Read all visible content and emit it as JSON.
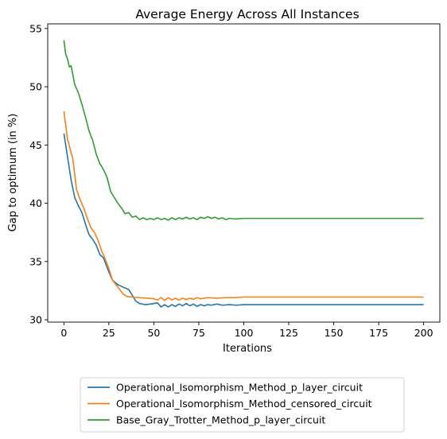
{
  "chart_data": {
    "type": "line",
    "title": "Average Energy Across All Instances",
    "xlabel": "Iterations",
    "ylabel": "Gap to optimum (in %)",
    "xlim": [
      -9,
      209
    ],
    "ylim": [
      29.8,
      55.4
    ],
    "xticks": [
      0,
      25,
      50,
      75,
      100,
      125,
      150,
      175,
      200
    ],
    "yticks": [
      30,
      35,
      40,
      45,
      50,
      55
    ],
    "grid": false,
    "legend_position": "bottom-center-outside",
    "series": [
      {
        "name": "Operational_Isomorphism_Method_p_layer_circuit",
        "color": "#1f77b4",
        "points": [
          [
            0,
            46.0
          ],
          [
            2,
            44.0
          ],
          [
            4,
            42.0
          ],
          [
            6,
            40.5
          ],
          [
            8,
            39.8
          ],
          [
            10,
            39.2
          ],
          [
            12,
            38.2
          ],
          [
            14,
            37.3
          ],
          [
            16,
            36.9
          ],
          [
            18,
            36.4
          ],
          [
            20,
            35.6
          ],
          [
            22,
            35.3
          ],
          [
            25,
            34.1
          ],
          [
            27,
            33.4
          ],
          [
            30,
            33.0
          ],
          [
            33,
            32.8
          ],
          [
            36,
            32.6
          ],
          [
            38,
            32.1
          ],
          [
            40,
            31.6
          ],
          [
            42,
            31.4
          ],
          [
            45,
            31.3
          ],
          [
            48,
            31.35
          ],
          [
            52,
            31.45
          ],
          [
            54,
            31.1
          ],
          [
            56,
            31.3
          ],
          [
            58,
            31.1
          ],
          [
            60,
            31.3
          ],
          [
            62,
            31.15
          ],
          [
            64,
            31.35
          ],
          [
            66,
            31.2
          ],
          [
            68,
            31.4
          ],
          [
            70,
            31.2
          ],
          [
            72,
            31.35
          ],
          [
            74,
            31.15
          ],
          [
            76,
            31.3
          ],
          [
            78,
            31.2
          ],
          [
            80,
            31.3
          ],
          [
            82,
            31.25
          ],
          [
            85,
            31.35
          ],
          [
            88,
            31.25
          ],
          [
            92,
            31.3
          ],
          [
            96,
            31.25
          ],
          [
            100,
            31.3
          ],
          [
            125,
            31.3
          ],
          [
            150,
            31.3
          ],
          [
            175,
            31.3
          ],
          [
            200,
            31.3
          ]
        ]
      },
      {
        "name": "Operational_Isomorphism_Method_censored_circuit",
        "color": "#ff7f0e",
        "points": [
          [
            0,
            47.9
          ],
          [
            2,
            45.5
          ],
          [
            5,
            43.8
          ],
          [
            7,
            41.2
          ],
          [
            9,
            40.3
          ],
          [
            11,
            39.6
          ],
          [
            13,
            38.7
          ],
          [
            15,
            37.9
          ],
          [
            17,
            37.5
          ],
          [
            19,
            36.8
          ],
          [
            21,
            35.9
          ],
          [
            23,
            35.2
          ],
          [
            25,
            34.4
          ],
          [
            27,
            33.4
          ],
          [
            29,
            33.0
          ],
          [
            31,
            32.6
          ],
          [
            33,
            32.2
          ],
          [
            35,
            32.0
          ],
          [
            38,
            31.95
          ],
          [
            42,
            31.9
          ],
          [
            46,
            31.85
          ],
          [
            50,
            31.8
          ],
          [
            52,
            31.7
          ],
          [
            54,
            31.9
          ],
          [
            56,
            31.65
          ],
          [
            58,
            31.9
          ],
          [
            60,
            31.7
          ],
          [
            62,
            31.85
          ],
          [
            64,
            31.7
          ],
          [
            66,
            31.85
          ],
          [
            68,
            31.75
          ],
          [
            70,
            31.85
          ],
          [
            72,
            31.75
          ],
          [
            74,
            31.9
          ],
          [
            76,
            31.8
          ],
          [
            80,
            31.9
          ],
          [
            85,
            31.85
          ],
          [
            90,
            31.9
          ],
          [
            95,
            31.9
          ],
          [
            100,
            31.95
          ],
          [
            125,
            31.95
          ],
          [
            150,
            31.95
          ],
          [
            175,
            31.95
          ],
          [
            200,
            31.95
          ]
        ]
      },
      {
        "name": "Base_Gray_Trotter_Method_p_layer_circuit",
        "color": "#2ca02c",
        "points": [
          [
            0,
            54.0
          ],
          [
            1,
            52.8
          ],
          [
            2,
            52.4
          ],
          [
            3,
            51.7
          ],
          [
            4,
            51.8
          ],
          [
            5,
            51.0
          ],
          [
            6,
            50.2
          ],
          [
            8,
            49.5
          ],
          [
            10,
            48.5
          ],
          [
            12,
            47.4
          ],
          [
            14,
            46.2
          ],
          [
            16,
            45.4
          ],
          [
            18,
            44.2
          ],
          [
            20,
            43.4
          ],
          [
            22,
            42.9
          ],
          [
            24,
            42.2
          ],
          [
            26,
            41.0
          ],
          [
            28,
            40.5
          ],
          [
            30,
            40.0
          ],
          [
            32,
            39.6
          ],
          [
            34,
            39.1
          ],
          [
            36,
            39.2
          ],
          [
            38,
            38.8
          ],
          [
            40,
            38.9
          ],
          [
            42,
            38.6
          ],
          [
            44,
            38.75
          ],
          [
            46,
            38.6
          ],
          [
            48,
            38.7
          ],
          [
            50,
            38.6
          ],
          [
            52,
            38.75
          ],
          [
            54,
            38.6
          ],
          [
            56,
            38.7
          ],
          [
            58,
            38.55
          ],
          [
            60,
            38.75
          ],
          [
            62,
            38.6
          ],
          [
            64,
            38.75
          ],
          [
            66,
            38.65
          ],
          [
            68,
            38.8
          ],
          [
            70,
            38.65
          ],
          [
            72,
            38.75
          ],
          [
            74,
            38.6
          ],
          [
            76,
            38.8
          ],
          [
            78,
            38.7
          ],
          [
            80,
            38.85
          ],
          [
            82,
            38.7
          ],
          [
            84,
            38.8
          ],
          [
            86,
            38.65
          ],
          [
            88,
            38.75
          ],
          [
            90,
            38.6
          ],
          [
            92,
            38.7
          ],
          [
            95,
            38.65
          ],
          [
            100,
            38.7
          ],
          [
            125,
            38.7
          ],
          [
            150,
            38.7
          ],
          [
            175,
            38.7
          ],
          [
            200,
            38.7
          ]
        ]
      }
    ]
  }
}
